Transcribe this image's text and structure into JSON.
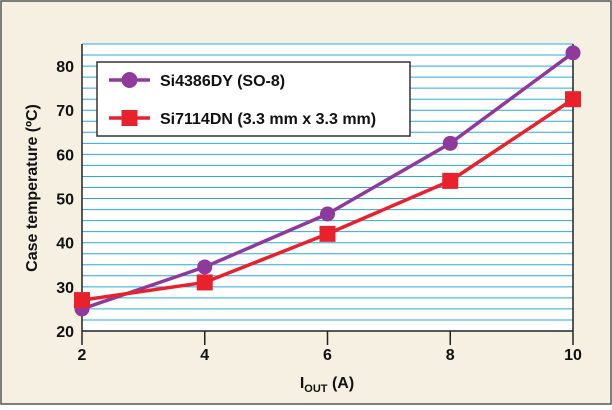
{
  "chart_data": {
    "type": "line",
    "xlabel": "I",
    "xlabel_sub": "OUT",
    "xlabel_unit": " (A)",
    "ylabel": "Case temperature (ºC)",
    "xlim": [
      2,
      10
    ],
    "ylim": [
      20,
      85
    ],
    "x_ticks": [
      2,
      4,
      6,
      8,
      10
    ],
    "y_ticks": [
      20,
      30,
      40,
      50,
      60,
      70,
      80
    ],
    "grid": true,
    "legend_position": "top-left",
    "colors": {
      "panel_background": "#F5F0E1",
      "plot_background": "#FFFFFF",
      "gridline": "#29ABE2",
      "axis": "#222222",
      "frame": "#555555"
    },
    "series": [
      {
        "name": "Si4386DY (SO-8)",
        "marker": "circle",
        "color": "#8E3A9D",
        "x": [
          2,
          4,
          6,
          8,
          10
        ],
        "y": [
          25,
          34.5,
          46.5,
          62.5,
          83
        ]
      },
      {
        "name": "Si7114DN (3.3 mm x 3.3 mm)",
        "marker": "square",
        "color": "#E8212D",
        "x": [
          2,
          4,
          6,
          8,
          10
        ],
        "y": [
          27,
          31,
          42,
          54,
          72.5
        ]
      }
    ]
  }
}
